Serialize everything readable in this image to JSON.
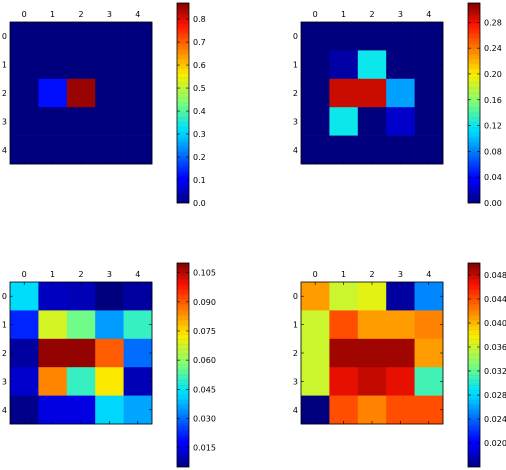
{
  "chart_data": [
    {
      "type": "heatmap",
      "x_ticks": [
        "0",
        "1",
        "2",
        "3",
        "4"
      ],
      "y_ticks": [
        "0",
        "1",
        "2",
        "3",
        "4"
      ],
      "values": [
        [
          0,
          0,
          0,
          0,
          0
        ],
        [
          0,
          0,
          0,
          0,
          0
        ],
        [
          0,
          0.12,
          0.85,
          0,
          0
        ],
        [
          0,
          0,
          0,
          0,
          0
        ],
        [
          0,
          0,
          0,
          0,
          0
        ]
      ],
      "vmin": 0,
      "vmax": 0.87,
      "colorbar_ticks": [
        "0.0",
        "0.1",
        "0.2",
        "0.3",
        "0.4",
        "0.5",
        "0.6",
        "0.7",
        "0.8"
      ],
      "colorbar_tick_values": [
        0,
        0.1,
        0.2,
        0.3,
        0.4,
        0.5,
        0.6,
        0.7,
        0.8
      ]
    },
    {
      "type": "heatmap",
      "x_ticks": [
        "0",
        "1",
        "2",
        "3",
        "4"
      ],
      "y_ticks": [
        "0",
        "1",
        "2",
        "3",
        "4"
      ],
      "values": [
        [
          0,
          0,
          0,
          0,
          0
        ],
        [
          0,
          0.01,
          0.12,
          0,
          0
        ],
        [
          0,
          0.29,
          0.29,
          0.09,
          0
        ],
        [
          0,
          0.12,
          0,
          0.02,
          0
        ],
        [
          0,
          0,
          0,
          0,
          0
        ]
      ],
      "vmin": 0,
      "vmax": 0.31,
      "colorbar_ticks": [
        "0.00",
        "0.04",
        "0.08",
        "0.12",
        "0.16",
        "0.20",
        "0.24",
        "0.28"
      ],
      "colorbar_tick_values": [
        0,
        0.04,
        0.08,
        0.12,
        0.16,
        0.2,
        0.24,
        0.28
      ]
    },
    {
      "type": "heatmap",
      "x_ticks": [
        "0",
        "1",
        "2",
        "3",
        "4"
      ],
      "y_ticks": [
        "0",
        "1",
        "2",
        "3",
        "4"
      ],
      "values": [
        [
          0.043,
          0.011,
          0.01,
          0.005,
          0.008
        ],
        [
          0.022,
          0.068,
          0.056,
          0.035,
          0.05
        ],
        [
          0.008,
          0.108,
          0.108,
          0.09,
          0.03
        ],
        [
          0.012,
          0.085,
          0.05,
          0.073,
          0.01
        ],
        [
          0.006,
          0.014,
          0.014,
          0.042,
          0.036
        ]
      ],
      "vmin": 0.005,
      "vmax": 0.11,
      "colorbar_ticks": [
        "0.015",
        "0.030",
        "0.045",
        "0.060",
        "0.075",
        "0.090",
        "0.105"
      ],
      "colorbar_tick_values": [
        0.015,
        0.03,
        0.045,
        0.06,
        0.075,
        0.09,
        0.105
      ]
    },
    {
      "type": "heatmap",
      "x_ticks": [
        "0",
        "1",
        "2",
        "3",
        "4"
      ],
      "y_ticks": [
        "0",
        "1",
        "2",
        "3",
        "4"
      ],
      "values": [
        [
          0.041,
          0.036,
          0.037,
          0.017,
          0.025
        ],
        [
          0.036,
          0.044,
          0.041,
          0.041,
          0.042
        ],
        [
          0.036,
          0.049,
          0.049,
          0.049,
          0.041
        ],
        [
          0.036,
          0.047,
          0.048,
          0.047,
          0.031
        ],
        [
          0.016,
          0.044,
          0.042,
          0.044,
          0.044
        ]
      ],
      "vmin": 0.016,
      "vmax": 0.05,
      "colorbar_ticks": [
        "0.020",
        "0.024",
        "0.028",
        "0.032",
        "0.036",
        "0.040",
        "0.044",
        "0.048"
      ],
      "colorbar_tick_values": [
        0.02,
        0.024,
        0.028,
        0.032,
        0.036,
        0.04,
        0.044,
        0.048
      ]
    }
  ]
}
